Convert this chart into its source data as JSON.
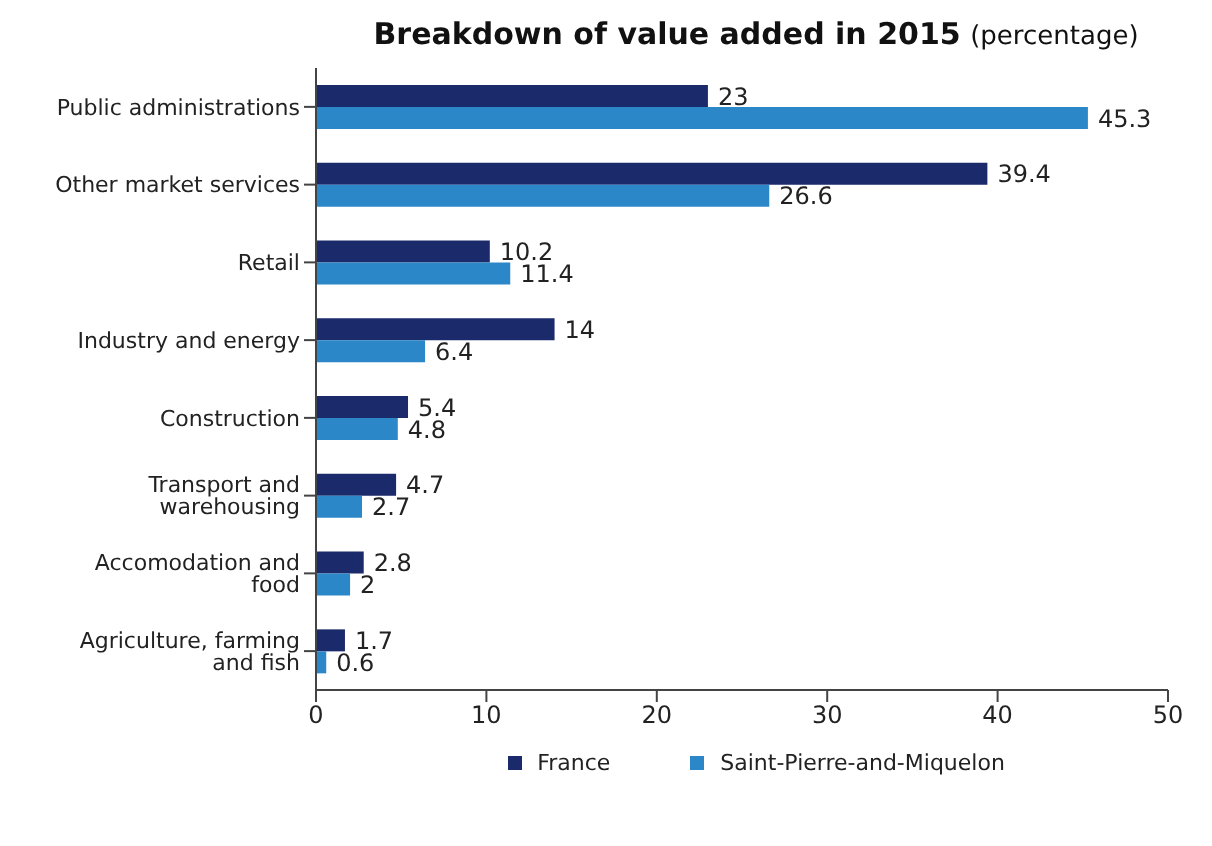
{
  "chart_data": {
    "type": "bar",
    "orientation": "horizontal",
    "title": "Breakdown of value added in 2015",
    "subtitle": "(percentage)",
    "categories": [
      "Public administrations",
      "Other market services",
      "Retail",
      "Industry and energy",
      "Construction",
      "Transport and warehousing",
      "Accomodation and food",
      "Agriculture, farming and fish"
    ],
    "series": [
      {
        "name": "France",
        "color": "#1b2a6b",
        "values": [
          23,
          39.4,
          10.2,
          14,
          5.4,
          4.7,
          2.8,
          1.7
        ]
      },
      {
        "name": "Saint-Pierre-and-Miquelon",
        "color": "#2b87c8",
        "values": [
          45.3,
          26.6,
          11.4,
          6.4,
          4.8,
          2.7,
          2,
          0.6
        ]
      }
    ],
    "xlim": [
      0,
      50
    ],
    "xticks": [
      0,
      10,
      20,
      30,
      40,
      50
    ],
    "grid": false,
    "legend": "bottom",
    "data_labels": true
  }
}
